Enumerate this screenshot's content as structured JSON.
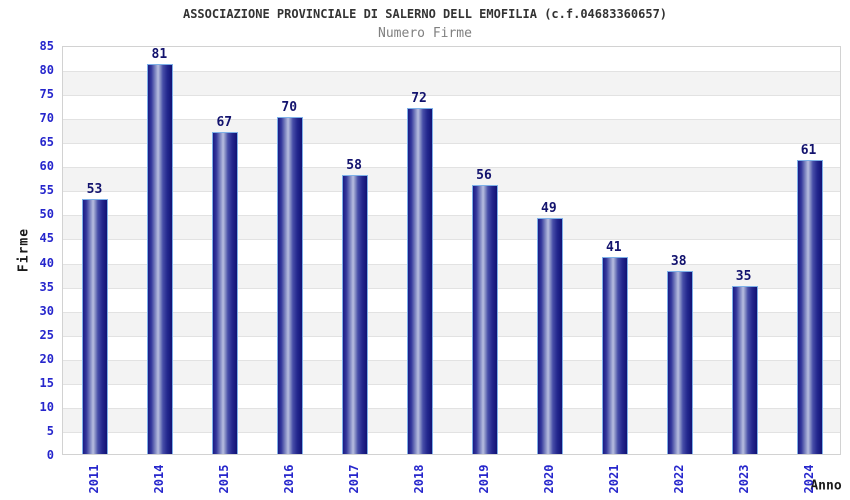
{
  "chart_data": {
    "type": "bar",
    "title": "ASSOCIAZIONE PROVINCIALE DI SALERNO DELL EMOFILIA (c.f.04683360657)",
    "subtitle": "Numero Firme",
    "xlabel": "Anno",
    "ylabel": "Firme",
    "categories": [
      "2011",
      "2014",
      "2015",
      "2016",
      "2017",
      "2018",
      "2019",
      "2020",
      "2021",
      "2022",
      "2023",
      "2024"
    ],
    "values": [
      53,
      81,
      67,
      70,
      58,
      72,
      56,
      49,
      41,
      38,
      35,
      61
    ],
    "ylim": [
      0,
      85
    ],
    "ytick_step": 5,
    "yticks": [
      0,
      5,
      10,
      15,
      20,
      25,
      30,
      35,
      40,
      45,
      50,
      55,
      60,
      65,
      70,
      75,
      80,
      85
    ],
    "grid": "horizontal-alternating-bands",
    "legend": "none",
    "bar_labels_shown": true,
    "colors": {
      "title": "#333333",
      "subtitle": "#808080",
      "tick_label": "#2626cc",
      "value_label": "#13136e",
      "bar_dark": "#1b1b85",
      "bar_light": "#b8bee0",
      "bar_border": "#7db0e8",
      "band": "#f3f3f3",
      "gridline": "#e2e2e2",
      "plot_border": "#d2d2d2"
    }
  }
}
